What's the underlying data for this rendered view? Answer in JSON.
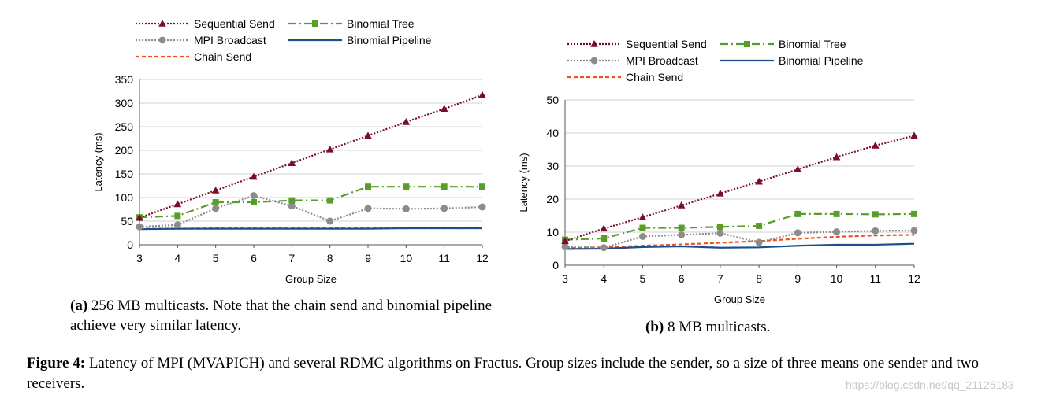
{
  "colors": {
    "sequential": "#7a0c2c",
    "binomial_tree": "#5a9e2a",
    "mpi": "#8c8c8c",
    "binomial_pipeline": "#1f4e8c",
    "chain": "#f0501e",
    "grid": "#d0d0d0",
    "axis": "#555555"
  },
  "chart_data": [
    {
      "type": "line",
      "xlabel": "Group Size",
      "ylabel": "Latency (ms)",
      "x": [
        3,
        4,
        5,
        6,
        7,
        8,
        9,
        10,
        11,
        12
      ],
      "ylim": [
        0,
        350
      ],
      "yticks": [
        0,
        50,
        100,
        150,
        200,
        250,
        300,
        350
      ],
      "grid": true,
      "legend": [
        "Sequential Send",
        "Binomial Tree",
        "MPI Broadcast",
        "Binomial Pipeline",
        "Chain Send"
      ],
      "series": [
        {
          "key": "sequential",
          "name": "Sequential Send",
          "values": [
            57,
            86,
            115,
            144,
            173,
            202,
            231,
            260,
            288,
            317
          ]
        },
        {
          "key": "binomial_tree",
          "name": "Binomial Tree",
          "values": [
            58,
            61,
            90,
            90,
            94,
            94,
            123,
            123,
            123,
            123
          ]
        },
        {
          "key": "mpi",
          "name": "MPI Broadcast",
          "values": [
            38,
            42,
            77,
            104,
            82,
            50,
            77,
            76,
            77,
            80
          ]
        },
        {
          "key": "binomial_pipeline",
          "name": "Binomial Pipeline",
          "values": [
            33,
            34,
            34,
            34,
            34,
            34,
            34,
            35,
            35,
            35
          ]
        },
        {
          "key": "chain",
          "name": "Chain Send",
          "values": [
            34,
            34,
            35,
            35,
            35,
            35,
            35,
            35,
            35,
            35
          ]
        }
      ]
    },
    {
      "type": "line",
      "xlabel": "Group Size",
      "ylabel": "Latency (ms)",
      "x": [
        3,
        4,
        5,
        6,
        7,
        8,
        9,
        10,
        11,
        12
      ],
      "ylim": [
        0,
        50
      ],
      "yticks": [
        0,
        10,
        20,
        30,
        40,
        50
      ],
      "grid": true,
      "legend": [
        "Sequential Send",
        "Binomial Tree",
        "MPI Broadcast",
        "Binomial Pipeline",
        "Chain Send"
      ],
      "series": [
        {
          "key": "sequential",
          "name": "Sequential Send",
          "values": [
            7.3,
            11.1,
            14.5,
            18.1,
            21.7,
            25.3,
            29.0,
            32.7,
            36.2,
            39.2
          ]
        },
        {
          "key": "binomial_tree",
          "name": "Binomial Tree",
          "values": [
            7.7,
            8.1,
            11.3,
            11.3,
            11.6,
            11.9,
            15.5,
            15.5,
            15.4,
            15.5
          ]
        },
        {
          "key": "mpi",
          "name": "MPI Broadcast",
          "values": [
            5.6,
            5.3,
            8.7,
            9.2,
            9.7,
            6.9,
            9.8,
            10.1,
            10.4,
            10.5
          ]
        },
        {
          "key": "binomial_pipeline",
          "name": "Binomial Pipeline",
          "values": [
            4.9,
            5.0,
            5.5,
            5.7,
            5.3,
            5.4,
            5.9,
            6.2,
            6.2,
            6.5
          ]
        },
        {
          "key": "chain",
          "name": "Chain Send",
          "values": [
            5.2,
            5.4,
            5.9,
            6.3,
            6.8,
            7.3,
            8.0,
            8.6,
            9.0,
            9.2
          ]
        }
      ]
    }
  ],
  "captions": {
    "a_label": "(a)",
    "a_text": "256 MB multicasts. Note that the chain send and binomial pipeline achieve very similar latency.",
    "b_label": "(b)",
    "b_text": "8 MB multicasts.",
    "figure_label": "Figure 4:",
    "figure_text": "Latency of MPI (MVAPICH) and several RDMC algorithms on Fractus. Group sizes include the sender, so a size of three means one sender and two receivers."
  },
  "watermark": "https://blog.csdn.net/qq_21125183"
}
